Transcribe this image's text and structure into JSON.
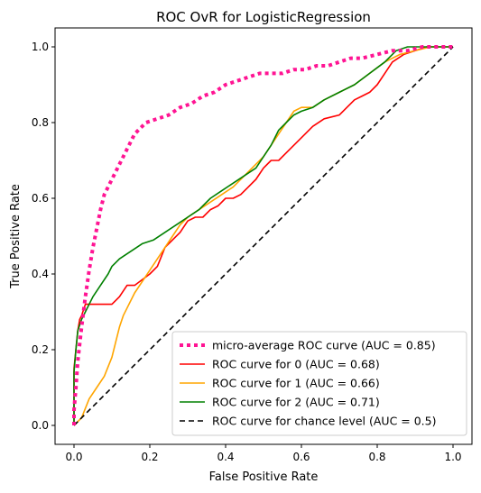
{
  "chart_data": {
    "type": "line",
    "title": "ROC OvR for LogisticRegression",
    "xlabel": "False Positive Rate",
    "ylabel": "True Positive Rate",
    "xlim": [
      -0.05,
      1.05
    ],
    "ylim": [
      -0.05,
      1.05
    ],
    "xticks": [
      "0.0",
      "0.2",
      "0.4",
      "0.6",
      "0.8",
      "1.0"
    ],
    "yticks": [
      "0.0",
      "0.2",
      "0.4",
      "0.6",
      "0.8",
      "1.0"
    ],
    "grid": false,
    "legend_position": "lower right",
    "series": [
      {
        "name": "micro-average ROC curve (AUC = 0.85)",
        "color": "#ff1493",
        "style": "dotted",
        "x": [
          0.0,
          0.0,
          0.005,
          0.01,
          0.02,
          0.03,
          0.04,
          0.05,
          0.06,
          0.07,
          0.08,
          0.1,
          0.12,
          0.14,
          0.16,
          0.19,
          0.22,
          0.25,
          0.28,
          0.31,
          0.34,
          0.37,
          0.4,
          0.43,
          0.46,
          0.49,
          0.52,
          0.55,
          0.58,
          0.61,
          0.64,
          0.67,
          0.7,
          0.73,
          0.76,
          0.8,
          0.84,
          0.88,
          0.92,
          0.96,
          1.0
        ],
        "y": [
          0.0,
          0.04,
          0.1,
          0.17,
          0.26,
          0.34,
          0.41,
          0.47,
          0.52,
          0.57,
          0.61,
          0.65,
          0.69,
          0.73,
          0.77,
          0.8,
          0.81,
          0.82,
          0.84,
          0.85,
          0.87,
          0.88,
          0.9,
          0.91,
          0.92,
          0.93,
          0.93,
          0.93,
          0.94,
          0.94,
          0.95,
          0.95,
          0.96,
          0.97,
          0.97,
          0.98,
          0.99,
          0.99,
          1.0,
          1.0,
          1.0
        ]
      },
      {
        "name": "ROC curve for 0 (AUC = 0.68)",
        "color": "#ff0000",
        "style": "solid",
        "x": [
          0.0,
          0.0,
          0.005,
          0.01,
          0.015,
          0.02,
          0.03,
          0.05,
          0.1,
          0.12,
          0.14,
          0.16,
          0.2,
          0.22,
          0.24,
          0.28,
          0.3,
          0.32,
          0.34,
          0.36,
          0.38,
          0.4,
          0.42,
          0.44,
          0.46,
          0.48,
          0.5,
          0.52,
          0.54,
          0.56,
          0.58,
          0.6,
          0.63,
          0.66,
          0.7,
          0.72,
          0.74,
          0.76,
          0.78,
          0.8,
          0.82,
          0.84,
          0.87,
          0.9,
          0.93,
          0.96,
          1.0
        ],
        "y": [
          0.0,
          0.15,
          0.2,
          0.25,
          0.28,
          0.29,
          0.32,
          0.32,
          0.32,
          0.34,
          0.37,
          0.37,
          0.4,
          0.42,
          0.47,
          0.51,
          0.54,
          0.55,
          0.55,
          0.57,
          0.58,
          0.6,
          0.6,
          0.61,
          0.63,
          0.65,
          0.68,
          0.7,
          0.7,
          0.72,
          0.74,
          0.76,
          0.79,
          0.81,
          0.82,
          0.84,
          0.86,
          0.87,
          0.88,
          0.9,
          0.93,
          0.96,
          0.98,
          0.99,
          1.0,
          1.0,
          1.0
        ]
      },
      {
        "name": "ROC curve for 1 (AUC = 0.66)",
        "color": "#ffa500",
        "style": "solid",
        "x": [
          0.0,
          0.02,
          0.04,
          0.06,
          0.08,
          0.1,
          0.11,
          0.12,
          0.13,
          0.14,
          0.15,
          0.16,
          0.18,
          0.2,
          0.22,
          0.24,
          0.26,
          0.28,
          0.3,
          0.33,
          0.36,
          0.39,
          0.42,
          0.45,
          0.48,
          0.5,
          0.52,
          0.54,
          0.56,
          0.58,
          0.6,
          0.63,
          0.66,
          0.7,
          0.74,
          0.78,
          0.82,
          0.86,
          0.9,
          0.94,
          0.97,
          1.0
        ],
        "y": [
          0.0,
          0.02,
          0.07,
          0.1,
          0.13,
          0.18,
          0.22,
          0.26,
          0.29,
          0.31,
          0.33,
          0.35,
          0.38,
          0.41,
          0.44,
          0.47,
          0.5,
          0.53,
          0.55,
          0.57,
          0.59,
          0.61,
          0.63,
          0.66,
          0.69,
          0.71,
          0.74,
          0.77,
          0.8,
          0.83,
          0.84,
          0.84,
          0.86,
          0.88,
          0.9,
          0.93,
          0.96,
          0.98,
          0.99,
          1.0,
          1.0,
          1.0
        ]
      },
      {
        "name": "ROC curve for 2 (AUC = 0.71)",
        "color": "#008000",
        "style": "solid",
        "x": [
          0.0,
          0.0,
          0.005,
          0.01,
          0.02,
          0.03,
          0.05,
          0.07,
          0.09,
          0.1,
          0.12,
          0.15,
          0.18,
          0.21,
          0.24,
          0.27,
          0.3,
          0.33,
          0.36,
          0.39,
          0.42,
          0.45,
          0.48,
          0.5,
          0.52,
          0.54,
          0.56,
          0.58,
          0.6,
          0.63,
          0.66,
          0.7,
          0.74,
          0.78,
          0.82,
          0.85,
          0.88,
          0.92,
          0.96,
          1.0
        ],
        "y": [
          0.0,
          0.14,
          0.2,
          0.25,
          0.28,
          0.3,
          0.34,
          0.37,
          0.4,
          0.42,
          0.44,
          0.46,
          0.48,
          0.49,
          0.51,
          0.53,
          0.55,
          0.57,
          0.6,
          0.62,
          0.64,
          0.66,
          0.68,
          0.71,
          0.74,
          0.78,
          0.8,
          0.82,
          0.83,
          0.84,
          0.86,
          0.88,
          0.9,
          0.93,
          0.96,
          0.99,
          1.0,
          1.0,
          1.0,
          1.0
        ]
      },
      {
        "name": "ROC curve for chance level (AUC = 0.5)",
        "color": "#000000",
        "style": "dashed",
        "x": [
          0.0,
          1.0
        ],
        "y": [
          0.0,
          1.0
        ]
      }
    ]
  }
}
